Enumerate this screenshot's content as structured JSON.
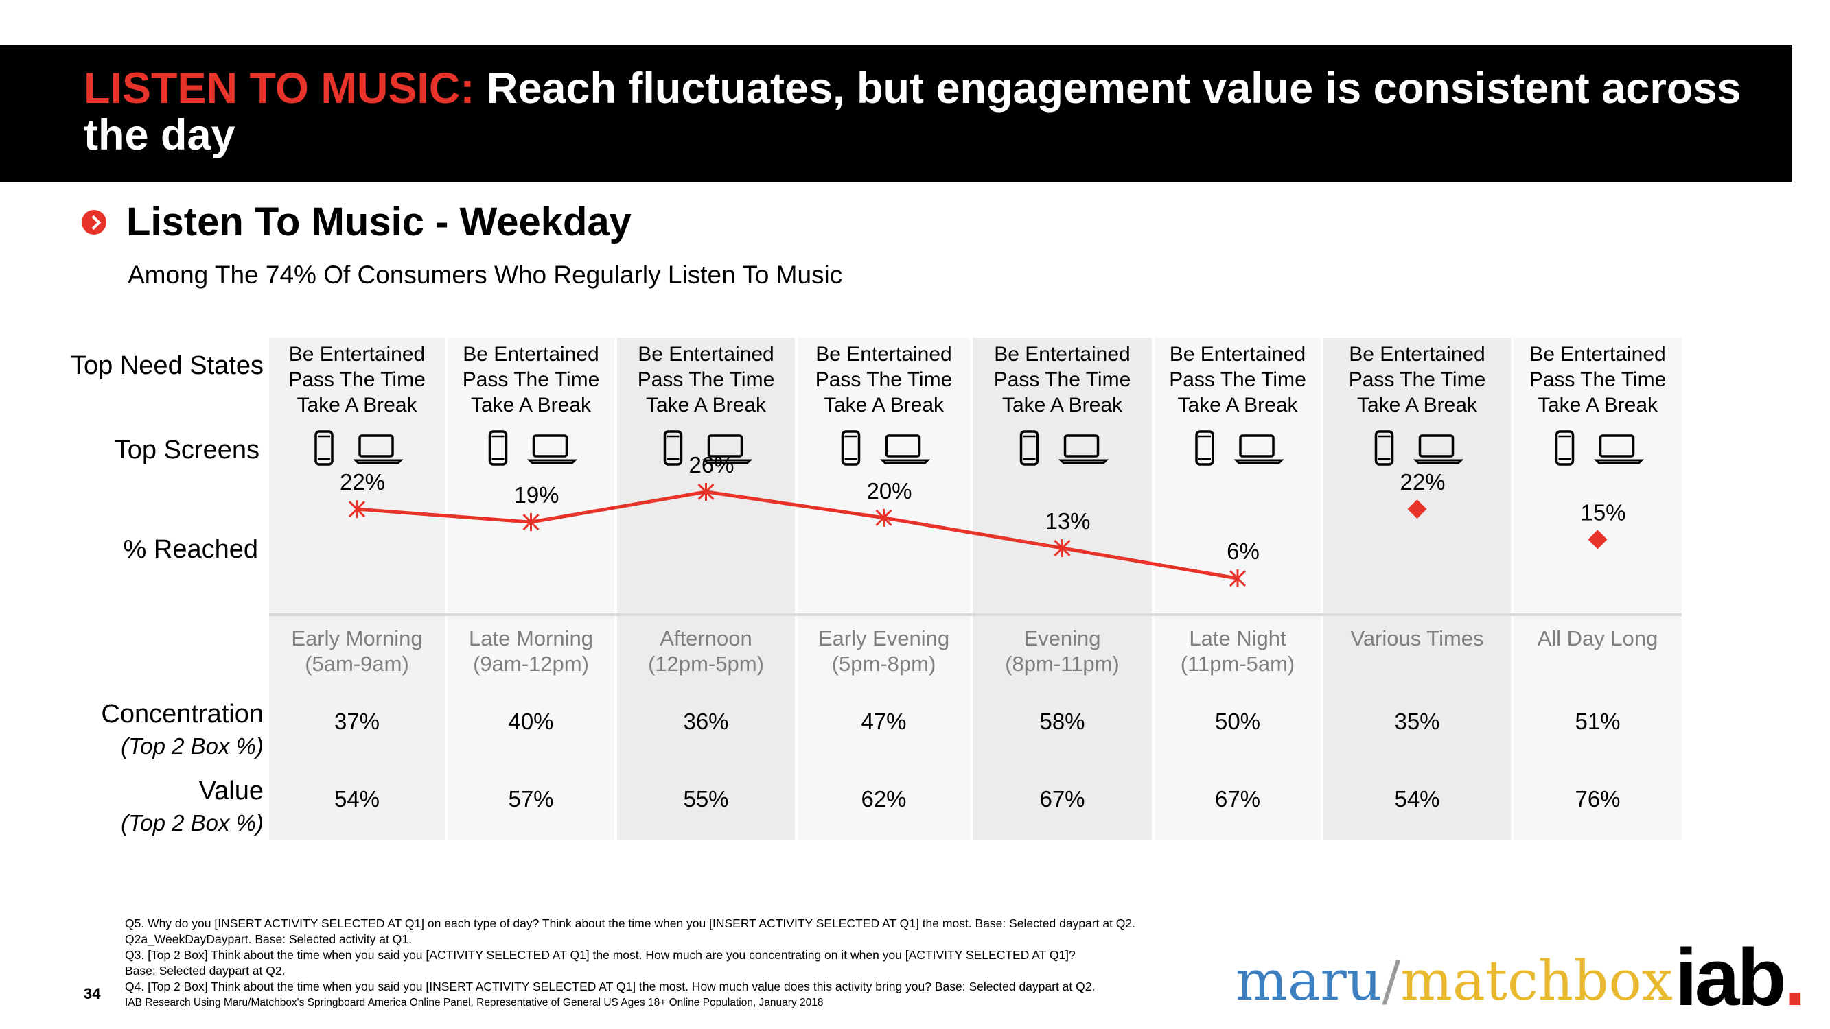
{
  "header": {
    "title_accent": "LISTEN TO MUSIC:",
    "title_rest": " Reach fluctuates, but engagement value is consistent across the day"
  },
  "section": {
    "subtitle": "Listen To Music - Weekday",
    "description": "Among The 74% Of Consumers Who Regularly Listen To Music"
  },
  "row_labels": {
    "need_states": "Top Need States",
    "screens": "Top Screens",
    "reached": "% Reached",
    "concentration": "Concentration",
    "concentration_sub": "(Top 2 Box %)",
    "value": "Value",
    "value_sub": "(Top 2 Box %)"
  },
  "columns": [
    {
      "need1": "Be Entertained",
      "need2": "Pass The Time",
      "need3": "Take A Break",
      "daypart": "Early Morning",
      "hours": "(5am-9am)",
      "concentration": "37%",
      "value": "54%",
      "bg": "#f2f2f2"
    },
    {
      "need1": "Be Entertained",
      "need2": "Pass The Time",
      "need3": "Take A Break",
      "daypart": "Late Morning",
      "hours": "(9am-12pm)",
      "concentration": "40%",
      "value": "57%",
      "bg": "#f7f7f7"
    },
    {
      "need1": "Be Entertained",
      "need2": "Pass The Time",
      "need3": "Take A Break",
      "daypart": "Afternoon",
      "hours": "(12pm-5pm)",
      "concentration": "36%",
      "value": "55%",
      "bg": "#ececec"
    },
    {
      "need1": "Be Entertained",
      "need2": "Pass The Time",
      "need3": "Take A Break",
      "daypart": "Early Evening",
      "hours": "(5pm-8pm)",
      "concentration": "47%",
      "value": "62%",
      "bg": "#f7f7f7"
    },
    {
      "need1": "Be Entertained",
      "need2": "Pass The Time",
      "need3": "Take A Break",
      "daypart": "Evening",
      "hours": "(8pm-11pm)",
      "concentration": "58%",
      "value": "67%",
      "bg": "#ececec"
    },
    {
      "need1": "Be Entertained",
      "need2": "Pass The Time",
      "need3": "Take A Break",
      "daypart": "Late Night",
      "hours": "(11pm-5am)",
      "concentration": "50%",
      "value": "67%",
      "bg": "#f7f7f7"
    },
    {
      "need1": "Be Entertained",
      "need2": "Pass The Time",
      "need3": "Take A Break",
      "daypart": "Various Times",
      "hours": "",
      "concentration": "35%",
      "value": "54%",
      "bg": "#ececec"
    },
    {
      "need1": "Be Entertained",
      "need2": "Pass The Time",
      "need3": "Take A Break",
      "daypart": "All Day Long",
      "hours": "",
      "concentration": "51%",
      "value": "76%",
      "bg": "#f7f7f7"
    }
  ],
  "screen_icons": [
    "smartphone-icon",
    "laptop-icon"
  ],
  "chart_data": {
    "type": "line",
    "categories": [
      "Early Morning",
      "Late Morning",
      "Afternoon",
      "Early Evening",
      "Evening",
      "Late Night",
      "Various Times",
      "All Day Long"
    ],
    "series": [
      {
        "values": [
          22,
          19,
          26,
          20,
          13,
          6,
          null,
          null
        ],
        "labels": [
          "22%",
          "19%",
          "26%",
          "20%",
          "13%",
          "6%",
          "",
          ""
        ],
        "marker": "asterisk",
        "connected": true
      },
      {
        "values": [
          null,
          null,
          null,
          null,
          null,
          null,
          22,
          15
        ],
        "labels": [
          "",
          "",
          "",
          "",
          "",
          "",
          "22%",
          "15%"
        ],
        "marker": "diamond",
        "connected": false
      }
    ],
    "color": "#e8332a"
  },
  "footnotes": {
    "q5": "Q5. Why do you [INSERT ACTIVITY SELECTED AT Q1] on each type of day? Think about the time when you [INSERT ACTIVITY SELECTED AT Q1] the most. Base: Selected daypart at Q2.",
    "q2a": "Q2a_WeekDayDaypart. Base: Selected activity at Q1.",
    "q3": "Q3. [Top 2 Box] Think about the time when you said you [ACTIVITY SELECTED AT Q1] the most.  How much are you concentrating on it when you [ACTIVITY SELECTED AT Q1]?",
    "q3_base": "Base: Selected daypart at Q2.",
    "q4": "Q4. [Top 2 Box] Think about the time when you said you [INSERT ACTIVITY SELECTED AT Q1] the most.  How much value does this activity bring you? Base: Selected daypart at Q2.",
    "source": "IAB Research Using Maru/Matchbox's Springboard America Online Panel, Representative of General US Ages 18+ Online Population, January 2018"
  },
  "page_number": "34",
  "logos": {
    "maru": "maru",
    "slash": "/",
    "matchbox": "matchbox",
    "iab": "iab",
    "iab_dot": "."
  }
}
